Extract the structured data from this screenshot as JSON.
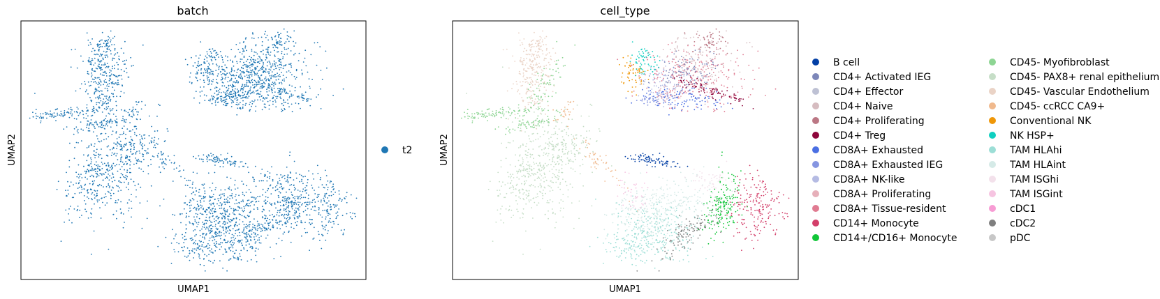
{
  "chart_data": [
    {
      "type": "scatter",
      "title": "batch",
      "xlabel": "UMAP1",
      "ylabel": "UMAP2",
      "ticks": false,
      "grid": false,
      "legend_placement": "right",
      "series": [
        {
          "name": "t2",
          "color": "#1f77b4"
        }
      ]
    },
    {
      "type": "scatter",
      "title": "cell_type",
      "xlabel": "UMAP1",
      "ylabel": "UMAP2",
      "ticks": false,
      "grid": false,
      "legend_placement": "right",
      "legend_columns": 2,
      "series": [
        {
          "name": "B cell",
          "color": "#023fa5"
        },
        {
          "name": "CD4+ Activated IEG",
          "color": "#7d87b9"
        },
        {
          "name": "CD4+ Effector",
          "color": "#bec1d4"
        },
        {
          "name": "CD4+ Naive",
          "color": "#d6bcc0"
        },
        {
          "name": "CD4+ Proliferating",
          "color": "#bb7784"
        },
        {
          "name": "CD4+ Treg",
          "color": "#8e063b"
        },
        {
          "name": "CD8A+ Exhausted",
          "color": "#4a6fe3"
        },
        {
          "name": "CD8A+ Exhausted IEG",
          "color": "#8595e1"
        },
        {
          "name": "CD8A+ NK-like",
          "color": "#b5bbe3"
        },
        {
          "name": "CD8A+ Proliferating",
          "color": "#e6afb9"
        },
        {
          "name": "CD8A+ Tissue-resident",
          "color": "#e07b91"
        },
        {
          "name": "CD14+ Monocyte",
          "color": "#d33f6a"
        },
        {
          "name": "CD14+/CD16+ Monocyte",
          "color": "#11c638"
        },
        {
          "name": "CD45- Myofibroblast",
          "color": "#8dd593"
        },
        {
          "name": "CD45- PAX8+ renal epithelium",
          "color": "#c6dec7"
        },
        {
          "name": "CD45- Vascular Endothelium",
          "color": "#ead3c6"
        },
        {
          "name": "CD45- ccRCC CA9+",
          "color": "#f0b98d"
        },
        {
          "name": "Conventional NK",
          "color": "#ef9708"
        },
        {
          "name": "NK HSP+",
          "color": "#0fcfc0"
        },
        {
          "name": "TAM HLAhi",
          "color": "#9cded6"
        },
        {
          "name": "TAM HLAint",
          "color": "#d5eae7"
        },
        {
          "name": "TAM ISGhi",
          "color": "#f3e1eb"
        },
        {
          "name": "TAM ISGint",
          "color": "#f6c4e1"
        },
        {
          "name": "cDC1",
          "color": "#f79cd4"
        },
        {
          "name": "cDC2",
          "color": "#7f7f7f"
        },
        {
          "name": "pDC",
          "color": "#c7c7c7"
        }
      ]
    }
  ]
}
